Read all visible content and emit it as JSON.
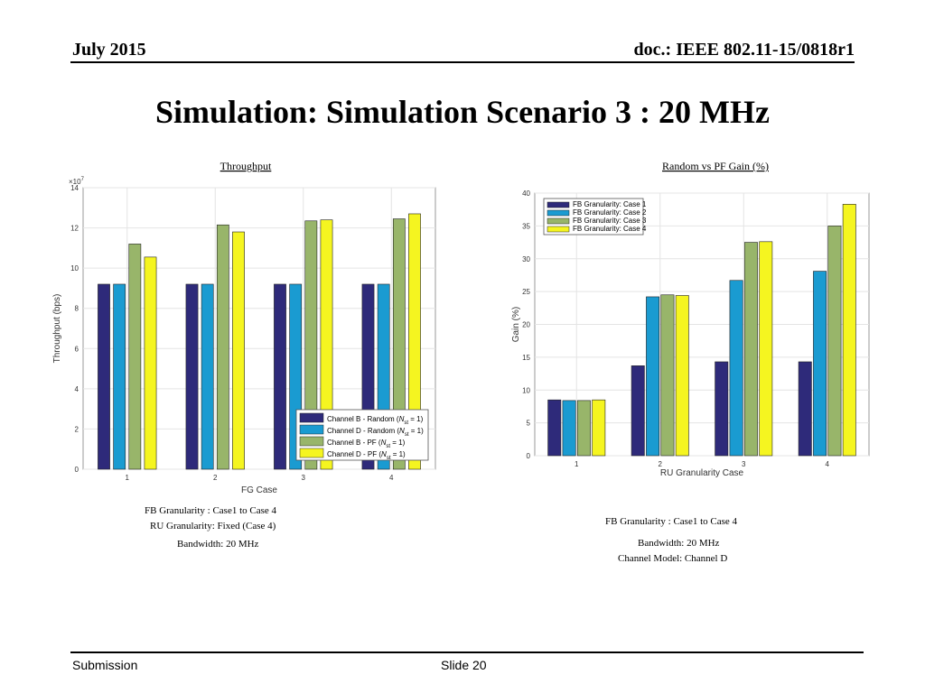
{
  "header": {
    "date": "July 2015",
    "doc": "doc.: IEEE 802.11-15/0818r1"
  },
  "title": "Simulation: Simulation Scenario 3 : 20 MHz",
  "chart_data": [
    {
      "type": "bar",
      "title": "Throughput",
      "xlabel": "FG Case",
      "ylabel": "Throughput (bps)",
      "y_multiplier": "×10^7",
      "ylim": [
        0,
        14
      ],
      "yticks": [
        0,
        2,
        4,
        6,
        8,
        10,
        12,
        14
      ],
      "categories": [
        "1",
        "2",
        "3",
        "4"
      ],
      "legend_position": "bottom-right",
      "grid": true,
      "series": [
        {
          "name": "Channel B - Random (N_st = 1)",
          "color": "#2e2a7a",
          "values": [
            9.2,
            9.2,
            9.2,
            9.2
          ]
        },
        {
          "name": "Channel D - Random (N_st = 1)",
          "color": "#1a9bd1",
          "values": [
            9.2,
            9.2,
            9.2,
            9.2
          ]
        },
        {
          "name": "Channel B - PF (N_st = 1)",
          "color": "#98b56a",
          "values": [
            11.2,
            12.15,
            12.35,
            12.45
          ]
        },
        {
          "name": "Channel D - PF (N_st = 1)",
          "color": "#f5f520",
          "values": [
            10.55,
            11.8,
            12.4,
            12.7
          ]
        }
      ]
    },
    {
      "type": "bar",
      "title": "Random vs PF Gain (%)",
      "xlabel": "RU Granularity Case",
      "ylabel": "Gain (%)",
      "ylim": [
        0,
        40
      ],
      "yticks": [
        0,
        5,
        10,
        15,
        20,
        25,
        30,
        35,
        40
      ],
      "categories": [
        "1",
        "2",
        "3",
        "4"
      ],
      "legend_position": "top-left",
      "grid": true,
      "series": [
        {
          "name": "FB Granularity: Case 1",
          "color": "#2e2a7a",
          "values": [
            8.5,
            13.7,
            14.3,
            14.3
          ]
        },
        {
          "name": "FB Granularity: Case 2",
          "color": "#1a9bd1",
          "values": [
            8.4,
            24.2,
            26.7,
            28.1
          ]
        },
        {
          "name": "FB Granularity: Case 3",
          "color": "#98b56a",
          "values": [
            8.4,
            24.5,
            32.5,
            35.0
          ]
        },
        {
          "name": "FB Granularity: Case 4",
          "color": "#f5f520",
          "values": [
            8.5,
            24.4,
            32.6,
            38.3
          ]
        }
      ]
    }
  ],
  "captions_left": [
    "FB Granularity : Case1 to Case 4",
    "RU Granularity: Fixed (Case 4)",
    "Bandwidth: 20 MHz"
  ],
  "captions_right": [
    "FB Granularity : Case1 to Case 4",
    "Bandwidth: 20 MHz",
    "Channel Model: Channel D"
  ],
  "footer": {
    "left": "Submission",
    "center": "Slide 20"
  }
}
